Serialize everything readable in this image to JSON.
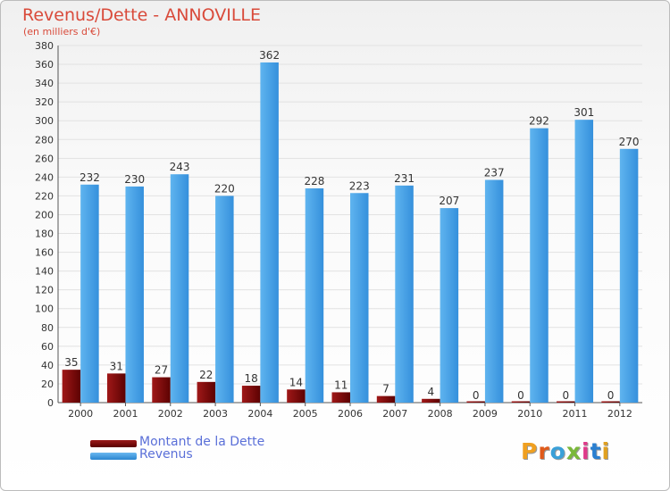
{
  "title": "Revenus/Dette - ANNOVILLE",
  "subtitle": "(en milliers d'€)",
  "logo_text": "Proxiti",
  "chart_data": {
    "type": "bar",
    "title": "Revenus/Dette - ANNOVILLE",
    "subtitle": "(en milliers d'€)",
    "categories": [
      "2000",
      "2001",
      "2002",
      "2003",
      "2004",
      "2005",
      "2006",
      "2007",
      "2008",
      "2009",
      "2010",
      "2011",
      "2012"
    ],
    "series": [
      {
        "name": "Montant de la Dette",
        "color": "#7a0a0a",
        "values": [
          35,
          31,
          27,
          22,
          18,
          14,
          11,
          7,
          4,
          0,
          0,
          0,
          0
        ]
      },
      {
        "name": "Revenus",
        "color": "#3f9be2",
        "values": [
          232,
          230,
          243,
          220,
          362,
          228,
          223,
          231,
          207,
          237,
          292,
          301,
          270
        ]
      }
    ],
    "ylim": [
      0,
      380
    ],
    "yticks": [
      0,
      20,
      40,
      60,
      80,
      100,
      120,
      140,
      160,
      180,
      200,
      220,
      240,
      260,
      280,
      300,
      320,
      340,
      360,
      380
    ],
    "grid": true,
    "legend_position": "bottom-left"
  },
  "legend": {
    "items": [
      {
        "label": "Montant de la Dette",
        "color": "#7a0a0a"
      },
      {
        "label": "Revenus",
        "color": "#3f9be2"
      }
    ]
  }
}
